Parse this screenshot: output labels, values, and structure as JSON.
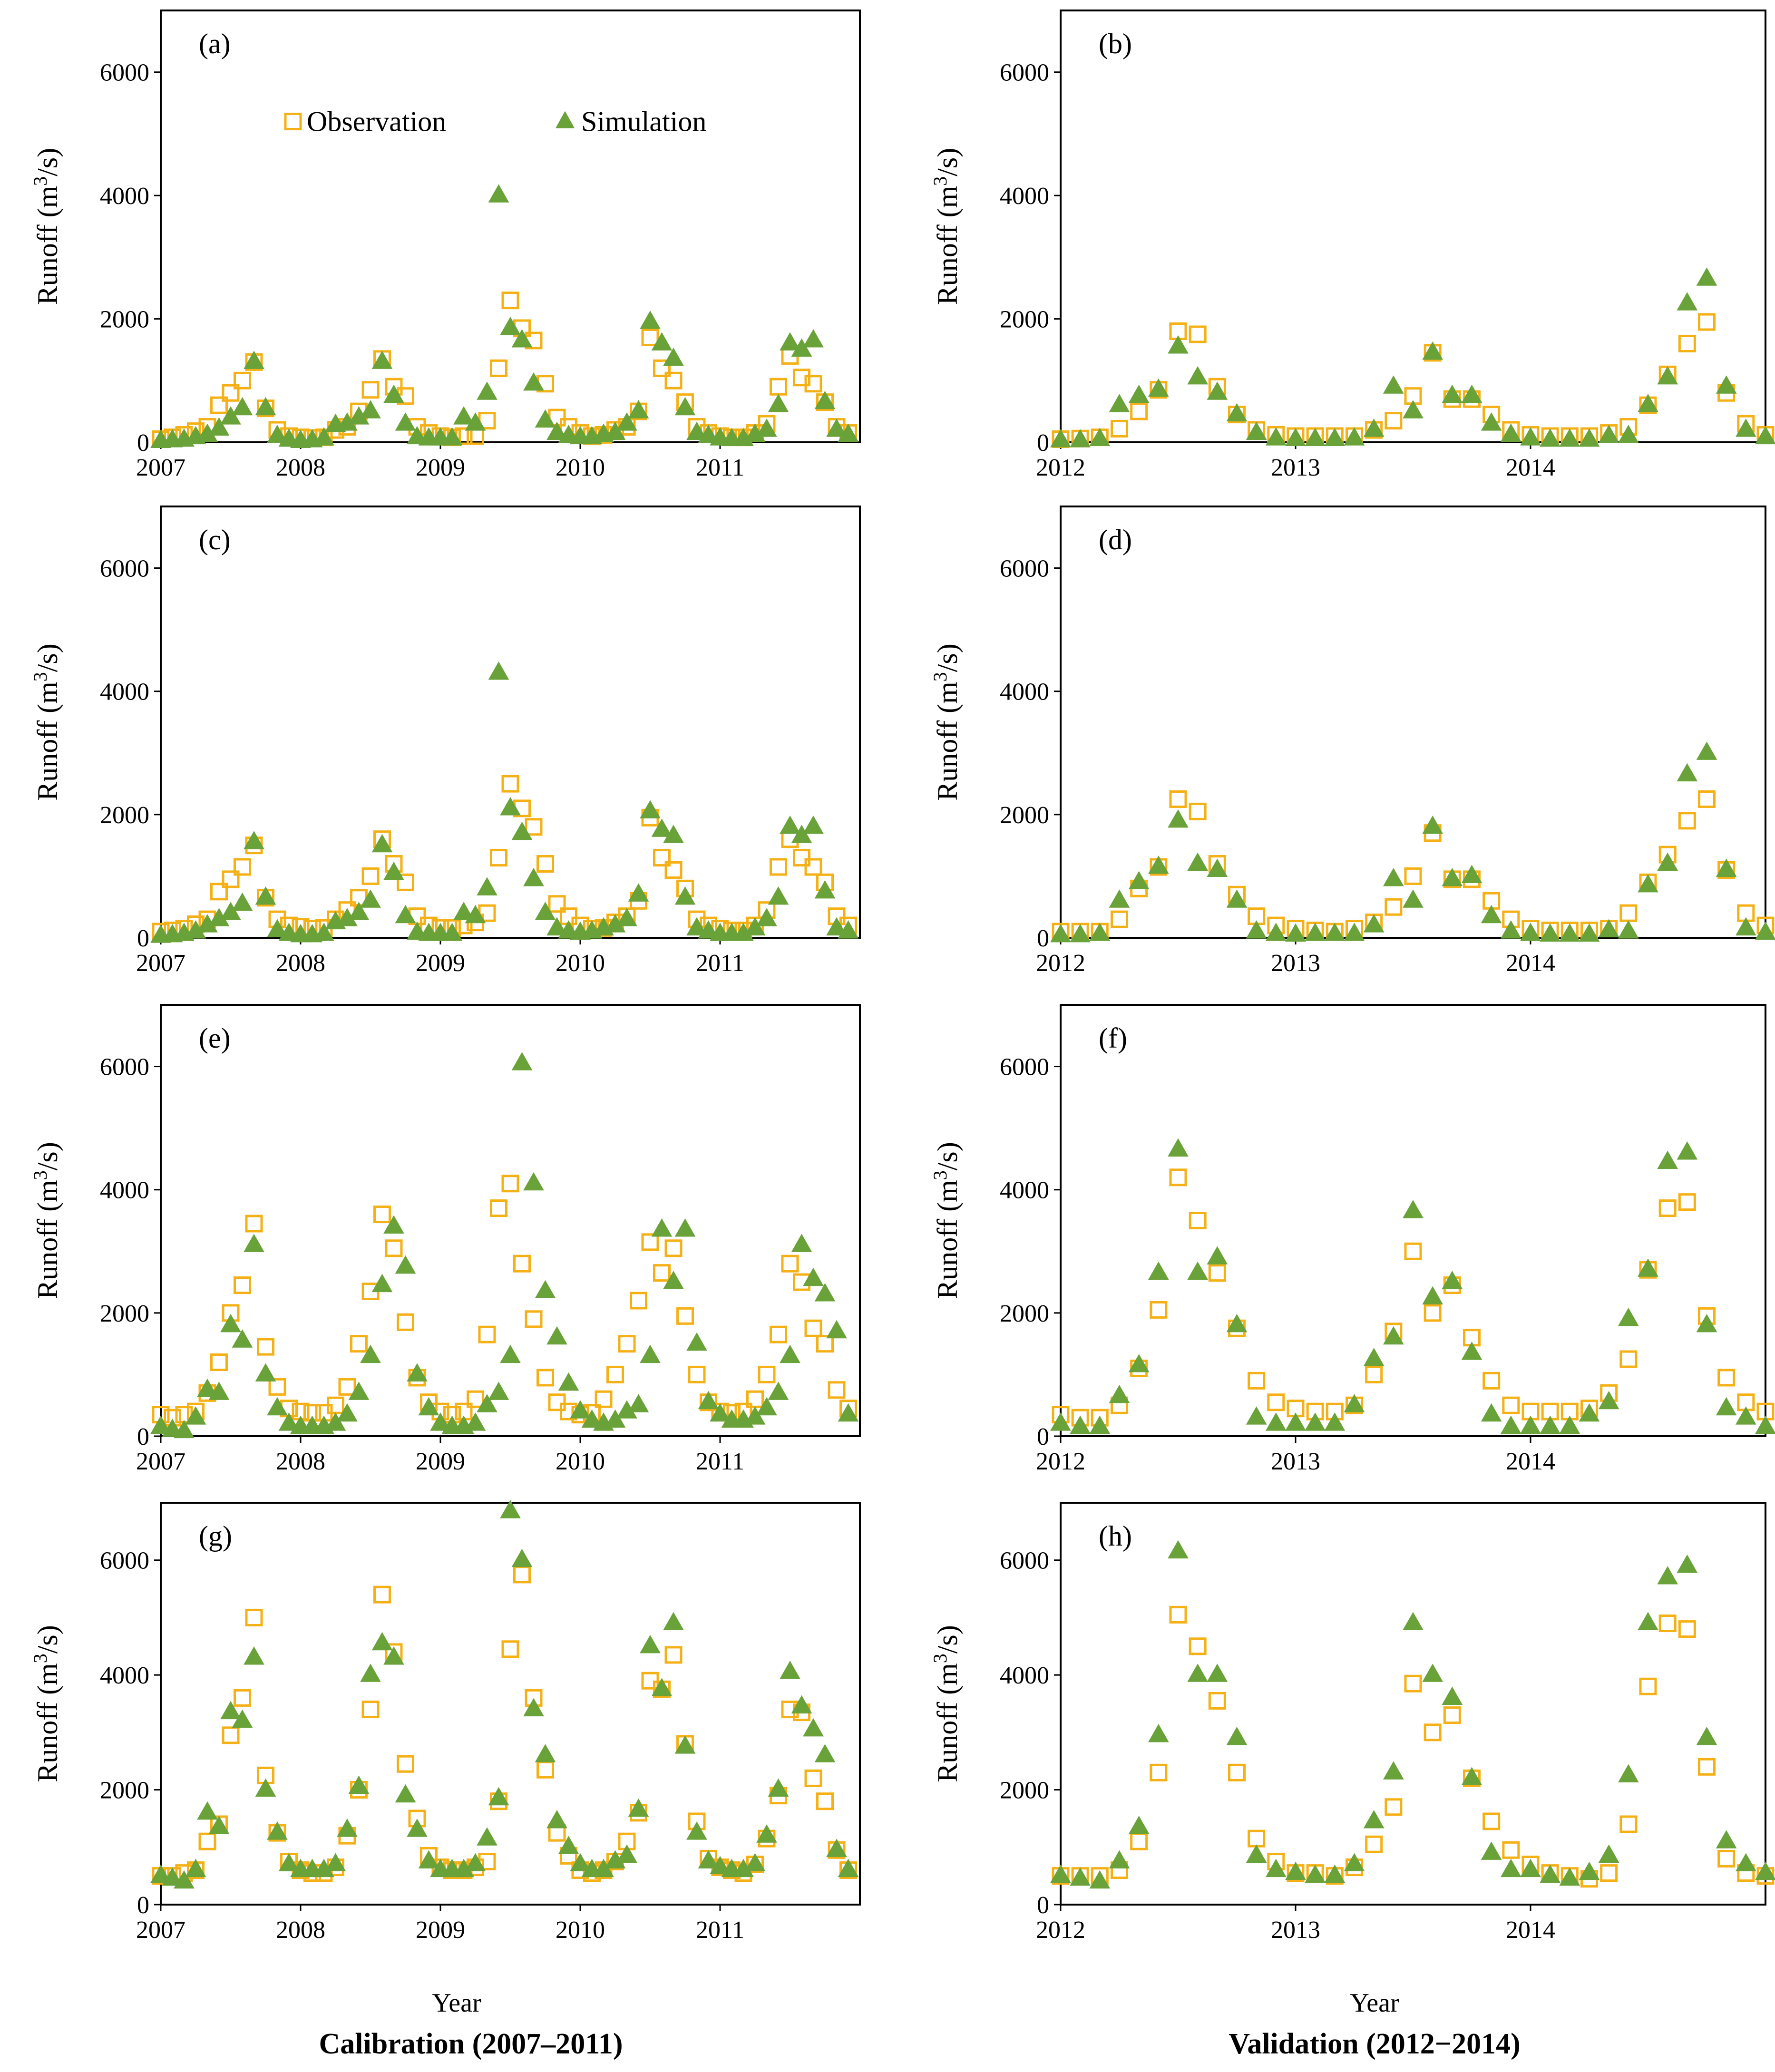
{
  "figure": {
    "legend": {
      "observation": "Observation",
      "simulation": "Simulation"
    },
    "ylabel": "Runoff",
    "yunit_base": "(m",
    "yunit_exp": "3",
    "yunit_tail": "/s)",
    "xlabel_left": "Year",
    "xlabel_right": "Year",
    "caption_left": "Calibration (2007–2011)",
    "caption_right": "Validation (2012−2014)",
    "colors": {
      "observation": "#F5B016",
      "simulation": "#6AA23A"
    }
  },
  "chart_data": [
    {
      "panel": "(a)",
      "type": "scatter",
      "period": "calibration",
      "x_ticks": [
        "2007",
        "2008",
        "2009",
        "2010",
        "2011"
      ],
      "y_ticks": [
        "0",
        "2000",
        "4000",
        "6000"
      ],
      "ylim": [
        0,
        7000
      ],
      "series": [
        {
          "name": "Observation",
          "values": [
            50,
            80,
            120,
            180,
            250,
            600,
            800,
            1000,
            1300,
            550,
            200,
            100,
            80,
            70,
            80,
            200,
            250,
            500,
            850,
            1350,
            900,
            750,
            250,
            150,
            100,
            80,
            100,
            100,
            350,
            1200,
            2300,
            1850,
            1650,
            950,
            400,
            250,
            150,
            100,
            120,
            200,
            250,
            500,
            1700,
            1200,
            1000,
            650,
            250,
            150,
            100,
            80,
            80,
            150,
            300,
            900,
            1400,
            1050,
            950,
            650,
            250,
            150
          ]
        },
        {
          "name": "Simulation",
          "values": [
            20,
            30,
            40,
            80,
            120,
            220,
            400,
            550,
            1300,
            550,
            100,
            40,
            20,
            30,
            60,
            280,
            300,
            400,
            500,
            1300,
            750,
            300,
            80,
            60,
            60,
            60,
            400,
            300,
            800,
            4000,
            1850,
            1650,
            950,
            350,
            150,
            100,
            80,
            80,
            120,
            150,
            300,
            500,
            1950,
            1600,
            1350,
            550,
            150,
            100,
            60,
            50,
            50,
            120,
            200,
            600,
            1600,
            1500,
            1650,
            650,
            200,
            120
          ]
        }
      ]
    },
    {
      "panel": "(b)",
      "type": "scatter",
      "period": "validation",
      "x_ticks": [
        "2012",
        "2013",
        "2014"
      ],
      "y_ticks": [
        "0",
        "2000",
        "4000",
        "6000"
      ],
      "ylim": [
        0,
        7000
      ],
      "series": [
        {
          "name": "Observation",
          "values": [
            50,
            60,
            80,
            220,
            500,
            850,
            1800,
            1750,
            900,
            450,
            200,
            120,
            100,
            100,
            100,
            100,
            200,
            350,
            750,
            1450,
            700,
            700,
            450,
            200,
            120,
            100,
            100,
            100,
            150,
            250,
            600,
            1100,
            1600,
            1950,
            800,
            300,
            120
          ]
        },
        {
          "name": "Simulation",
          "values": [
            30,
            30,
            50,
            600,
            750,
            850,
            1550,
            1050,
            800,
            450,
            150,
            60,
            50,
            50,
            50,
            60,
            200,
            900,
            500,
            1450,
            750,
            750,
            300,
            120,
            60,
            40,
            40,
            40,
            100,
            100,
            600,
            1050,
            2250,
            2650,
            900,
            200,
            80
          ]
        }
      ]
    },
    {
      "panel": "(c)",
      "type": "scatter",
      "period": "calibration",
      "x_ticks": [
        "2007",
        "2008",
        "2009",
        "2010",
        "2011"
      ],
      "y_ticks": [
        "0",
        "2000",
        "4000",
        "6000"
      ],
      "ylim": [
        0,
        7000
      ],
      "series": [
        {
          "name": "Observation",
          "values": [
            100,
            120,
            150,
            220,
            300,
            750,
            950,
            1150,
            1500,
            650,
            300,
            200,
            180,
            150,
            160,
            300,
            450,
            650,
            1000,
            1600,
            1200,
            900,
            350,
            200,
            160,
            160,
            200,
            250,
            400,
            1300,
            2500,
            2100,
            1800,
            1200,
            550,
            350,
            200,
            150,
            160,
            250,
            350,
            600,
            1950,
            1300,
            1100,
            800,
            300,
            200,
            150,
            120,
            120,
            200,
            450,
            1150,
            1600,
            1300,
            1150,
            900,
            350,
            200
          ]
        },
        {
          "name": "Simulation",
          "values": [
            30,
            40,
            60,
            100,
            200,
            300,
            400,
            550,
            1550,
            650,
            120,
            60,
            40,
            40,
            60,
            250,
            300,
            400,
            600,
            1500,
            1050,
            350,
            80,
            60,
            60,
            60,
            400,
            350,
            800,
            4300,
            2100,
            1700,
            950,
            400,
            150,
            100,
            80,
            100,
            150,
            200,
            300,
            700,
            2050,
            1750,
            1650,
            650,
            150,
            100,
            60,
            60,
            60,
            150,
            300,
            650,
            1800,
            1650,
            1800,
            750,
            150,
            100
          ]
        }
      ]
    },
    {
      "panel": "(d)",
      "type": "scatter",
      "period": "validation",
      "x_ticks": [
        "2012",
        "2013",
        "2014"
      ],
      "y_ticks": [
        "0",
        "2000",
        "4000",
        "6000"
      ],
      "ylim": [
        0,
        7000
      ],
      "series": [
        {
          "name": "Observation",
          "values": [
            100,
            100,
            100,
            300,
            800,
            1150,
            2250,
            2050,
            1200,
            700,
            350,
            200,
            150,
            120,
            100,
            150,
            250,
            500,
            1000,
            1700,
            950,
            950,
            600,
            300,
            150,
            120,
            120,
            120,
            150,
            400,
            900,
            1350,
            1900,
            2250,
            1100,
            400,
            200
          ]
        },
        {
          "name": "Simulation",
          "values": [
            40,
            40,
            60,
            600,
            900,
            1150,
            1900,
            1200,
            1100,
            600,
            100,
            60,
            50,
            60,
            60,
            60,
            200,
            950,
            600,
            1800,
            950,
            1000,
            350,
            100,
            60,
            50,
            50,
            50,
            120,
            100,
            850,
            1200,
            2650,
            3000,
            1100,
            150,
            80
          ]
        }
      ]
    },
    {
      "panel": "(e)",
      "type": "scatter",
      "period": "calibration",
      "x_ticks": [
        "2007",
        "2008",
        "2009",
        "2010",
        "2011"
      ],
      "y_ticks": [
        "0",
        "2000",
        "4000",
        "6000"
      ],
      "ylim": [
        0,
        7000
      ],
      "series": [
        {
          "name": "Observation",
          "values": [
            350,
            300,
            350,
            400,
            700,
            1200,
            2000,
            2450,
            3450,
            1450,
            800,
            450,
            400,
            380,
            380,
            500,
            800,
            1500,
            2350,
            3600,
            3050,
            1850,
            950,
            550,
            400,
            350,
            400,
            600,
            1650,
            3700,
            4100,
            2800,
            1900,
            950,
            550,
            400,
            350,
            380,
            600,
            1000,
            1500,
            2200,
            3150,
            2650,
            3050,
            1950,
            1000,
            550,
            400,
            380,
            400,
            600,
            1000,
            1650,
            2800,
            2500,
            1750,
            1500,
            750,
            450
          ]
        },
        {
          "name": "Simulation",
          "values": [
            150,
            100,
            80,
            300,
            750,
            700,
            1800,
            1550,
            3100,
            1000,
            450,
            200,
            150,
            150,
            150,
            200,
            350,
            700,
            1300,
            2450,
            3400,
            2750,
            1000,
            450,
            200,
            150,
            150,
            200,
            500,
            700,
            1300,
            6050,
            4100,
            2350,
            1600,
            850,
            400,
            250,
            200,
            250,
            400,
            500,
            1300,
            3350,
            2500,
            3350,
            1500,
            550,
            350,
            250,
            250,
            300,
            450,
            700,
            1300,
            3100,
            2550,
            2300,
            1700,
            350
          ]
        }
      ]
    },
    {
      "panel": "(f)",
      "type": "scatter",
      "period": "validation",
      "x_ticks": [
        "2012",
        "2013",
        "2014"
      ],
      "y_ticks": [
        "0",
        "2000",
        "4000",
        "6000"
      ],
      "ylim": [
        0,
        7000
      ],
      "series": [
        {
          "name": "Observation",
          "values": [
            350,
            300,
            300,
            500,
            1100,
            2050,
            4200,
            3500,
            2650,
            1750,
            900,
            550,
            450,
            400,
            400,
            500,
            1000,
            1700,
            3000,
            2000,
            2450,
            1600,
            900,
            500,
            400,
            400,
            400,
            450,
            700,
            1250,
            2700,
            3700,
            3800,
            1950,
            950,
            550,
            400
          ]
        },
        {
          "name": "Simulation",
          "values": [
            200,
            150,
            150,
            650,
            1150,
            2650,
            4650,
            2650,
            2900,
            1800,
            300,
            200,
            200,
            200,
            200,
            500,
            1250,
            1600,
            3650,
            2250,
            2500,
            1350,
            350,
            150,
            150,
            150,
            150,
            350,
            550,
            1900,
            2700,
            4450,
            4600,
            1800,
            450,
            300,
            150
          ]
        }
      ]
    },
    {
      "panel": "(g)",
      "type": "scatter",
      "period": "calibration",
      "x_ticks": [
        "2007",
        "2008",
        "2009",
        "2010",
        "2011"
      ],
      "y_ticks": [
        "0",
        "2000",
        "4000",
        "6000"
      ],
      "ylim": [
        0,
        7000
      ],
      "series": [
        {
          "name": "Observation",
          "values": [
            500,
            500,
            550,
            600,
            1100,
            1400,
            2950,
            3600,
            5000,
            2250,
            1250,
            750,
            600,
            550,
            550,
            650,
            1200,
            2000,
            3400,
            5400,
            4400,
            2450,
            1500,
            850,
            650,
            600,
            600,
            650,
            750,
            1800,
            4450,
            5750,
            3600,
            2350,
            1250,
            850,
            600,
            550,
            600,
            750,
            1100,
            1600,
            3900,
            3750,
            4350,
            2800,
            1450,
            800,
            650,
            600,
            550,
            700,
            1150,
            1900,
            3400,
            3350,
            2200,
            1800,
            950,
            600
          ]
        },
        {
          "name": "Simulation",
          "values": [
            500,
            450,
            400,
            600,
            1600,
            1350,
            3350,
            3200,
            4300,
            2000,
            1250,
            700,
            600,
            600,
            600,
            700,
            1300,
            2050,
            4000,
            4550,
            4300,
            1900,
            1300,
            750,
            600,
            600,
            600,
            700,
            1150,
            1850,
            6850,
            6000,
            3400,
            2600,
            1450,
            1000,
            700,
            600,
            600,
            750,
            850,
            1650,
            4500,
            3750,
            4900,
            2750,
            1250,
            750,
            650,
            600,
            600,
            700,
            1200,
            2000,
            4050,
            3450,
            3050,
            2600,
            950,
            600
          ]
        }
      ]
    },
    {
      "panel": "(h)",
      "type": "scatter",
      "period": "validation",
      "x_ticks": [
        "2012",
        "2013",
        "2014"
      ],
      "y_ticks": [
        "0",
        "2000",
        "4000",
        "6000"
      ],
      "ylim": [
        0,
        7000
      ],
      "series": [
        {
          "name": "Observation",
          "values": [
            500,
            500,
            500,
            600,
            1100,
            2300,
            5050,
            4500,
            3550,
            2300,
            1150,
            750,
            550,
            550,
            500,
            650,
            1050,
            1700,
            3850,
            3000,
            3300,
            2200,
            1450,
            950,
            700,
            550,
            500,
            450,
            550,
            1400,
            3800,
            4900,
            4800,
            2400,
            800,
            550,
            500
          ]
        },
        {
          "name": "Simulation",
          "values": [
            500,
            450,
            400,
            750,
            1350,
            2950,
            6150,
            4000,
            4000,
            2900,
            850,
            600,
            550,
            500,
            500,
            700,
            1450,
            2300,
            4900,
            4000,
            3600,
            2200,
            900,
            600,
            600,
            500,
            450,
            550,
            850,
            2250,
            4900,
            5700,
            5900,
            2900,
            1100,
            700,
            550
          ]
        }
      ]
    }
  ]
}
